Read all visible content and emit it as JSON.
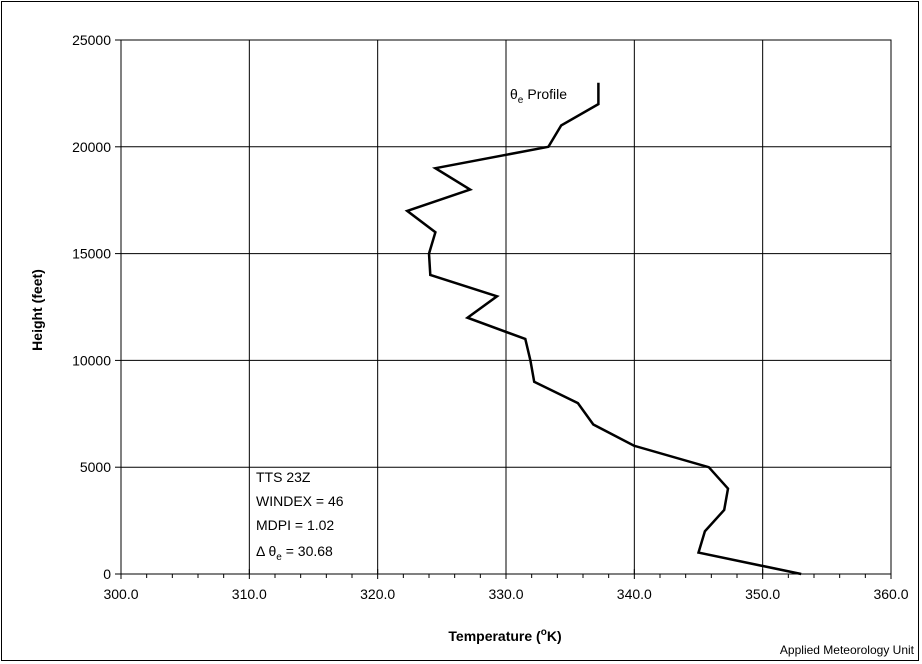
{
  "chart_data": {
    "type": "line",
    "title": "",
    "xlabel": "Temperature (",
    "xlabel_sup": "o",
    "xlabel_tail": "K)",
    "ylabel": "Height (feet)",
    "xlim": [
      300.0,
      360.0
    ],
    "ylim": [
      0,
      25000
    ],
    "xticks": [
      "300.0",
      "310.0",
      "320.0",
      "330.0",
      "340.0",
      "350.0",
      "360.0"
    ],
    "yticks": [
      "0",
      "5000",
      "10000",
      "15000",
      "20000",
      "25000"
    ],
    "grid": true,
    "series": [
      {
        "name": "Profile",
        "name_symbol": "θ",
        "name_sub": "e",
        "color": "#000000",
        "x": [
          353.0,
          345.0,
          345.5,
          347.0,
          347.3,
          345.8,
          340.0,
          336.8,
          335.6,
          332.2,
          331.9,
          331.5,
          327.0,
          329.3,
          324.1,
          324.0,
          324.5,
          322.3,
          327.2,
          324.5,
          333.3,
          334.3,
          337.2,
          337.2
        ],
        "y": [
          0,
          1000,
          2000,
          3000,
          4000,
          5000,
          6000,
          7000,
          8000,
          9000,
          10000,
          11000,
          12000,
          13000,
          14000,
          15000,
          16000,
          17000,
          18000,
          19000,
          20000,
          21000,
          22000,
          23000
        ]
      }
    ]
  },
  "annotation": {
    "line1": "TTS 23Z",
    "line2": "WINDEX = 46",
    "line3": "MDPI = 1.02",
    "line4_prefix": "Δ θ",
    "line4_sub": "e",
    "line4_tail": " = 30.68"
  },
  "footer": "Applied Meteorology Unit"
}
